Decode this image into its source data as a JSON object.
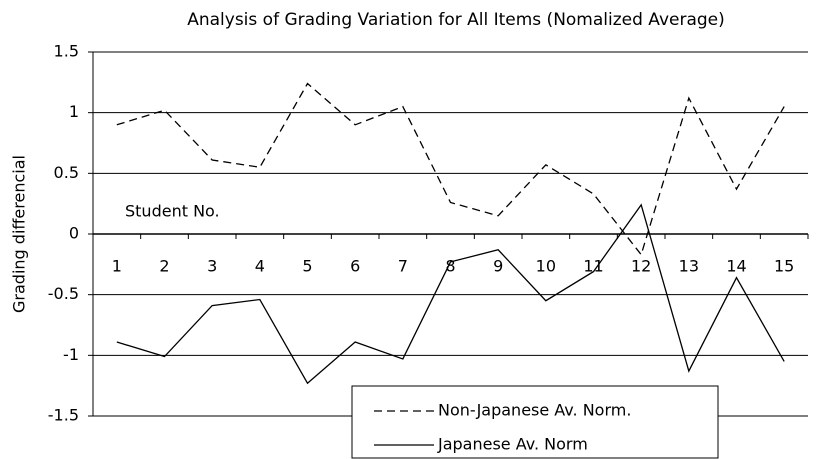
{
  "chart_data": {
    "type": "line",
    "title": "Analysis of Grading Variation for All Items (Nomalized Average)",
    "y_label": "Grading differencial",
    "x_label": "Student No.",
    "categories": [
      "1",
      "2",
      "3",
      "4",
      "5",
      "6",
      "7",
      "8",
      "9",
      "10",
      "11",
      "12",
      "13",
      "14",
      "15"
    ],
    "series": [
      {
        "name": "Non-Japanese Av. Norm.",
        "color": "#000000",
        "style": "dashed",
        "values": [
          0.9,
          1.02,
          0.61,
          0.55,
          1.24,
          0.9,
          1.05,
          0.26,
          0.15,
          0.57,
          0.33,
          -0.17,
          1.12,
          0.37,
          1.05
        ]
      },
      {
        "name": "Japanese Av. Norm",
        "color": "#000000",
        "style": "solid",
        "values": [
          -0.89,
          -1.01,
          -0.59,
          -0.54,
          -1.23,
          -0.89,
          -1.03,
          -0.23,
          -0.13,
          -0.55,
          -0.31,
          0.24,
          -1.13,
          -0.36,
          -1.05
        ]
      }
    ],
    "ylim": [
      -1.5,
      1.5
    ],
    "yticks": [
      1.5,
      1,
      0.5,
      0,
      -0.5,
      -1,
      -1.5
    ],
    "grid": true,
    "legend": "bottom"
  }
}
